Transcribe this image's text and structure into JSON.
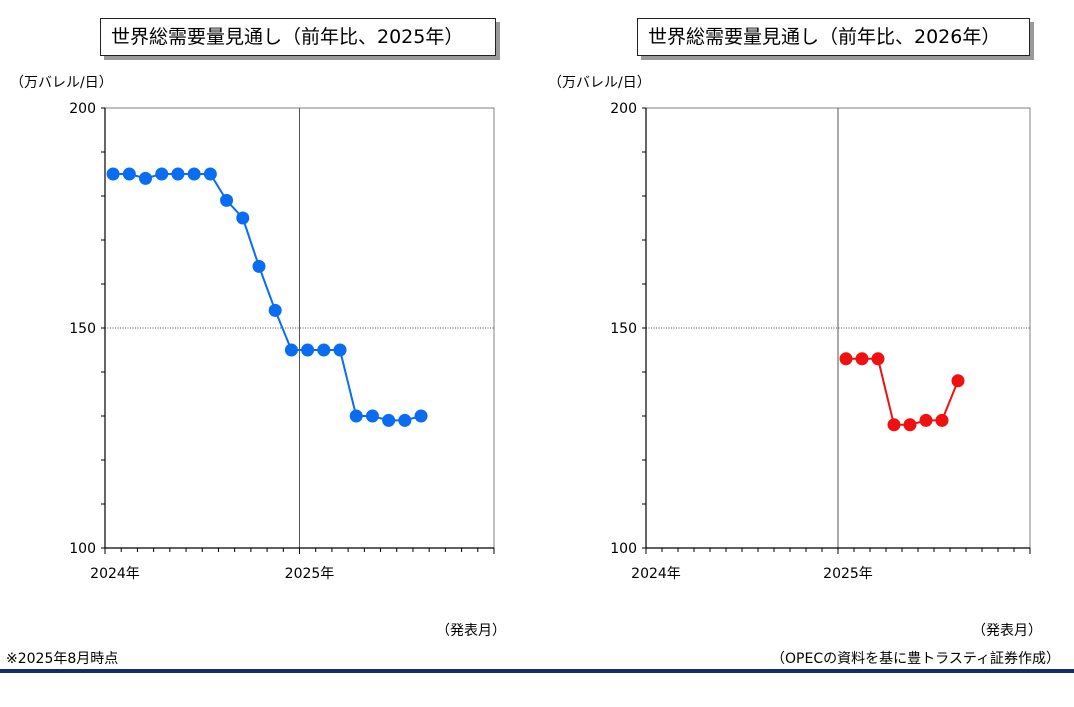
{
  "footnote": "※2025年8月時点",
  "source": "（OPECの資料を基に豊トラスティ証券作成）",
  "colors": {
    "left_series": "#0a6cf0",
    "right_series": "#f01010",
    "footer_rule": "#0f2f6b"
  },
  "chart_data": [
    {
      "type": "line",
      "title": "世界総需要量見通し（前年比、2025年）",
      "ylabel": "（万バレル/日）",
      "xlabel": "（発表月）",
      "ylim": [
        100,
        200
      ],
      "y_ticks": [
        "100",
        "150",
        "200"
      ],
      "x_ticks": [
        "2024年",
        "2025年"
      ],
      "x_range_months": 24,
      "grid": "major at 2025 and 150",
      "series": [
        {
          "points": [
            {
              "m": 0.5,
              "v": 185
            },
            {
              "m": 1.5,
              "v": 185
            },
            {
              "m": 2.5,
              "v": 184
            },
            {
              "m": 3.5,
              "v": 185
            },
            {
              "m": 4.5,
              "v": 185
            },
            {
              "m": 5.5,
              "v": 185
            },
            {
              "m": 6.5,
              "v": 185
            },
            {
              "m": 7.5,
              "v": 179
            },
            {
              "m": 8.5,
              "v": 175
            },
            {
              "m": 9.5,
              "v": 164
            },
            {
              "m": 10.5,
              "v": 154
            },
            {
              "m": 11.5,
              "v": 145
            },
            {
              "m": 12.5,
              "v": 145
            },
            {
              "m": 13.5,
              "v": 145
            },
            {
              "m": 14.5,
              "v": 145
            },
            {
              "m": 15.5,
              "v": 130
            },
            {
              "m": 16.5,
              "v": 130
            },
            {
              "m": 17.5,
              "v": 129
            },
            {
              "m": 18.5,
              "v": 129
            },
            {
              "m": 19.5,
              "v": 130
            }
          ]
        }
      ]
    },
    {
      "type": "line",
      "title": "世界総需要量見通し（前年比、2026年）",
      "ylabel": "（万バレル/日）",
      "xlabel": "（発表月）",
      "ylim": [
        100,
        200
      ],
      "y_ticks": [
        "100",
        "150",
        "200"
      ],
      "x_ticks": [
        "2024年",
        "2025年"
      ],
      "x_range_months": 24,
      "grid": "major at 2025 and 150",
      "series": [
        {
          "points": [
            {
              "m": 12.5,
              "v": 143
            },
            {
              "m": 13.5,
              "v": 143
            },
            {
              "m": 14.5,
              "v": 143
            },
            {
              "m": 15.5,
              "v": 128
            },
            {
              "m": 16.5,
              "v": 128
            },
            {
              "m": 17.5,
              "v": 129
            },
            {
              "m": 18.5,
              "v": 129
            },
            {
              "m": 19.5,
              "v": 138
            }
          ]
        }
      ]
    }
  ]
}
